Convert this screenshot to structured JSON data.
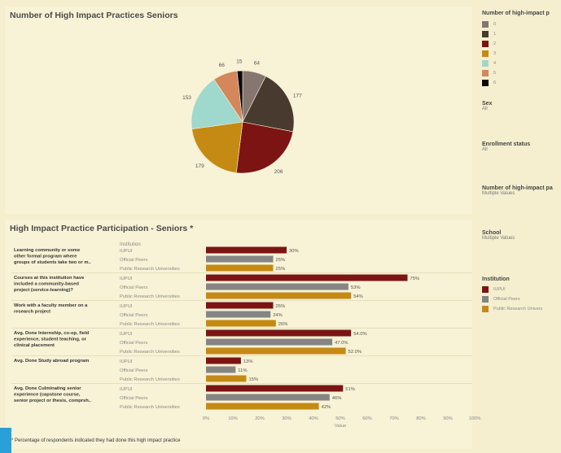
{
  "pie_title": "Number of High Impact Practices Seniors",
  "bar_title": "High Impact Practice Participation - Seniors *",
  "footnote": "* Percentage of respondents indicated they had done this high impact practice",
  "sidebar": {
    "legend1_title": "Number of high-impact p",
    "legend1_items": [
      "0",
      "1",
      "2",
      "3",
      "4",
      "5",
      "6"
    ],
    "filters": [
      {
        "label": "Sex",
        "value": "All"
      },
      {
        "label": "Enrollment status",
        "value": "All"
      },
      {
        "label": "Number of high-impact pa",
        "value": "Multiple Values"
      },
      {
        "label": "School",
        "value": "Multiple Values"
      }
    ],
    "legend2_title": "Institution",
    "legend2_items": [
      "IUPUI",
      "Official Peers",
      "Public Research Univers"
    ]
  },
  "colors": {
    "pie": [
      "#857670",
      "#483a2e",
      "#7d1414",
      "#c48a14",
      "#9fd8cc",
      "#d3875a",
      "#0a0a0a"
    ],
    "bars": [
      "#7d1414",
      "#858585",
      "#c48a14"
    ]
  },
  "chart_data": [
    {
      "type": "pie",
      "title": "Number of High Impact Practices Seniors",
      "categories": [
        "0",
        "1",
        "2",
        "3",
        "4",
        "5",
        "6"
      ],
      "values": [
        64,
        177,
        206,
        179,
        153,
        66,
        15
      ]
    },
    {
      "type": "bar",
      "orientation": "horizontal",
      "title": "High Impact Practice Participation - Seniors *",
      "group_header": "Institution",
      "xlabel": "Value",
      "xlim": [
        0,
        100
      ],
      "xticks": [
        "0%",
        "10%",
        "20%",
        "30%",
        "40%",
        "50%",
        "60%",
        "70%",
        "80%",
        "90%",
        "100%"
      ],
      "institutions": [
        "IUPUI",
        "Official Peers",
        "Public Research Universities"
      ],
      "groups": [
        {
          "label": [
            "Learning community or some",
            "other formal program where",
            "groups of students take two or m.."
          ],
          "values": [
            30,
            25,
            25
          ],
          "labels": [
            "30%",
            "25%",
            "25%"
          ]
        },
        {
          "label": [
            "Courses at this institution have",
            "included a community-based",
            "project (service-learning)?"
          ],
          "values": [
            75,
            53,
            54
          ],
          "labels": [
            "75%",
            "53%",
            "54%"
          ]
        },
        {
          "label": [
            "Work with a faculty member on a",
            "research project"
          ],
          "values": [
            25,
            24,
            26
          ],
          "labels": [
            "25%",
            "24%",
            "26%"
          ]
        },
        {
          "label": [
            "Avg. Done Internship, co-op, field",
            "experience, student teaching, or",
            "clinical placement"
          ],
          "values": [
            54.0,
            47.0,
            52.0
          ],
          "labels": [
            "54.0%",
            "47.0%",
            "52.0%"
          ]
        },
        {
          "label": [
            "Avg. Done Study abroad program"
          ],
          "values": [
            13,
            11,
            15
          ],
          "labels": [
            "13%",
            "11%",
            "15%"
          ]
        },
        {
          "label": [
            "Avg. Done Culminating senior",
            "experience (capstone course,",
            "senior project or thesis, comprsh.."
          ],
          "values": [
            51,
            46,
            42
          ],
          "labels": [
            "51%",
            "46%",
            "42%"
          ]
        }
      ]
    }
  ]
}
